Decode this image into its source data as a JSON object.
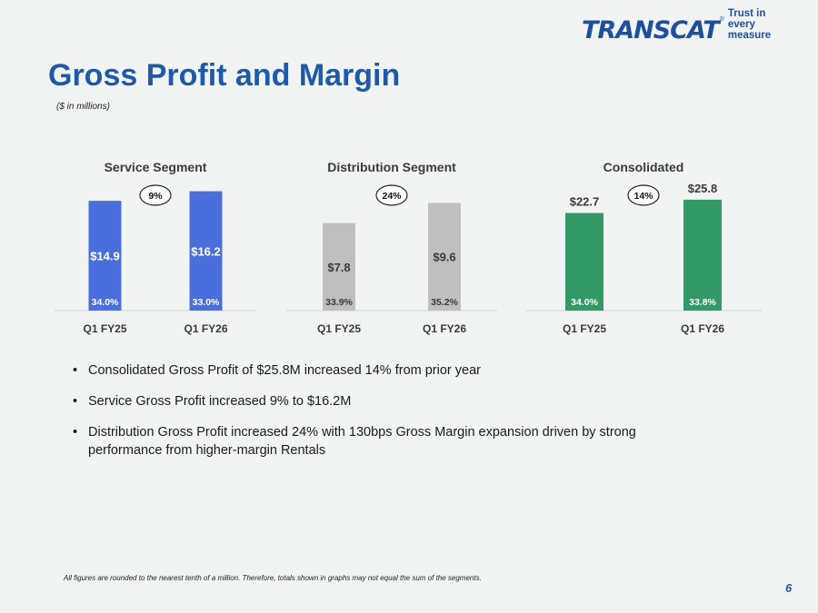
{
  "header": {
    "logo_text": "TRANSCAT",
    "logo_mark": "®",
    "logo_tagline": "Trust in every measure",
    "title": "Gross Profit and Margin",
    "subtitle": "($ in millions)"
  },
  "chart_data": [
    {
      "type": "bar",
      "title": "Service Segment",
      "categories": [
        "Q1 FY25",
        "Q1 FY26"
      ],
      "values": [
        14.9,
        16.2
      ],
      "value_labels": [
        "$14.9",
        "$16.2"
      ],
      "margin_labels": [
        "34.0%",
        "33.0%"
      ],
      "growth_label": "9%",
      "label_position": "inside",
      "color": "#4a6fdc",
      "ylim": [
        0,
        17.5
      ]
    },
    {
      "type": "bar",
      "title": "Distribution Segment",
      "categories": [
        "Q1 FY25",
        "Q1 FY26"
      ],
      "values": [
        7.8,
        9.6
      ],
      "value_labels": [
        "$7.8",
        "$9.6"
      ],
      "margin_labels": [
        "33.9%",
        "35.2%"
      ],
      "growth_label": "24%",
      "label_position": "inside",
      "color": "#bfbfbf",
      "ylim": [
        0,
        11.5
      ]
    },
    {
      "type": "bar",
      "title": "Consolidated",
      "categories": [
        "Q1 FY25",
        "Q1 FY26"
      ],
      "values": [
        22.7,
        25.8
      ],
      "value_labels": [
        "$22.7",
        "$25.8"
      ],
      "margin_labels": [
        "34.0%",
        "33.8%"
      ],
      "growth_label": "14%",
      "label_position": "above",
      "color": "#339966",
      "ylim": [
        0,
        30
      ]
    }
  ],
  "bullets": [
    "Consolidated Gross Profit of $25.8M increased 14% from prior year",
    "Service Gross Profit increased 9% to $16.2M",
    "Distribution Gross Profit increased 24% with 130bps Gross Margin expansion driven by strong performance from higher-margin Rentals"
  ],
  "footnote": "All figures are rounded to the nearest tenth of a million. Therefore, totals shown in graphs may not equal the sum of the segments.",
  "page_number": "6"
}
